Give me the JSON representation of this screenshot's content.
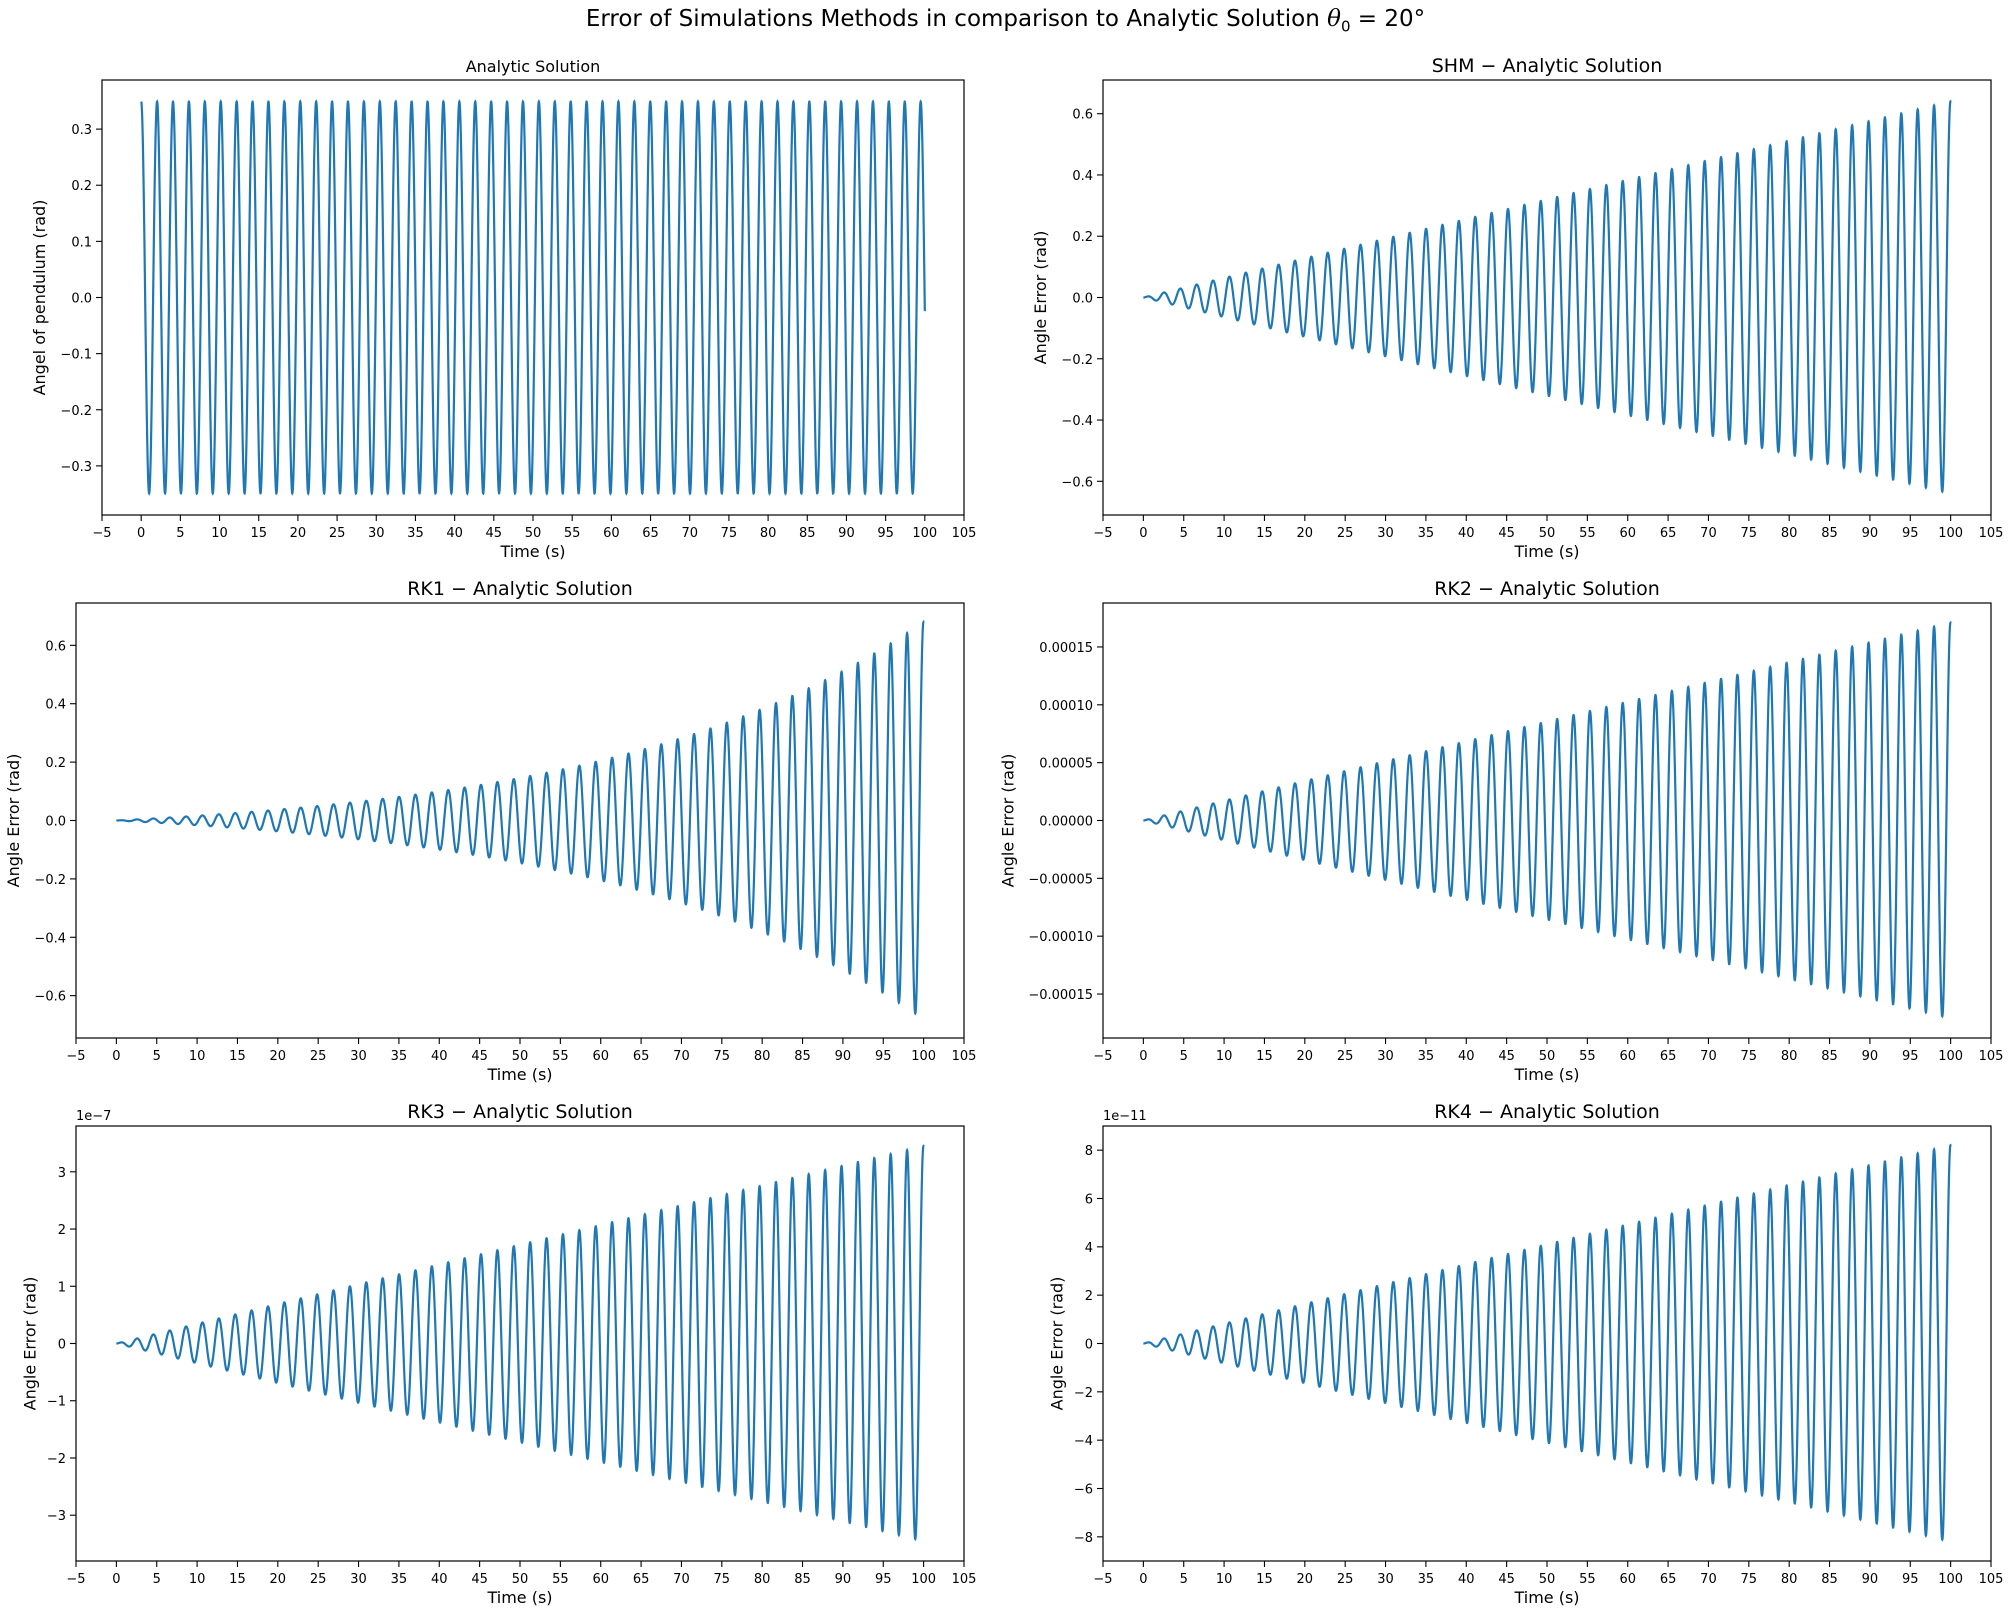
{
  "figure": {
    "title_prefix": "Error of Simulations Methods in comparison to Analytic Solution",
    "title_theta": "θ",
    "title_sub": "0",
    "title_suffix": " = 20°"
  },
  "chart_data": [
    {
      "type": "line",
      "title": "Analytic Solution",
      "xlabel": "Time (s)",
      "ylabel": "Angel of pendulum (rad)",
      "offset_text": "",
      "xlim": [
        -5,
        105
      ],
      "ylim": [
        -0.3875,
        0.3875
      ],
      "xticks": [
        -5,
        0,
        5,
        10,
        15,
        20,
        25,
        30,
        35,
        40,
        45,
        50,
        55,
        60,
        65,
        70,
        75,
        80,
        85,
        90,
        95,
        100,
        105
      ],
      "yticks": [
        -0.3,
        -0.2,
        -0.1,
        0.0,
        0.1,
        0.2,
        0.3
      ],
      "ytick_labels": [
        "−0.3",
        "−0.2",
        "−0.1",
        "0.0",
        "0.1",
        "0.2",
        "0.3"
      ],
      "series": [
        {
          "color": "#1f77b4",
          "signal": {
            "kind": "cosine",
            "amplitude": 0.349,
            "period_s": 2.03,
            "t_start": 0,
            "t_end": 100
          }
        }
      ]
    },
    {
      "type": "line",
      "title": "SHM − Analytic Solution",
      "xlabel": "Time (s)",
      "ylabel": "Angle Error (rad)",
      "offset_text": "",
      "xlim": [
        -5,
        105
      ],
      "ylim": [
        -0.71,
        0.71
      ],
      "xticks": [
        -5,
        0,
        5,
        10,
        15,
        20,
        25,
        30,
        35,
        40,
        45,
        50,
        55,
        60,
        65,
        70,
        75,
        80,
        85,
        90,
        95,
        100,
        105
      ],
      "yticks": [
        -0.6,
        -0.4,
        -0.2,
        0.0,
        0.2,
        0.4,
        0.6
      ],
      "ytick_labels": [
        "−0.6",
        "−0.4",
        "−0.2",
        "0.0",
        "0.2",
        "0.4",
        "0.6"
      ],
      "series": [
        {
          "color": "#1f77b4",
          "signal": {
            "kind": "growing-error",
            "peak_amplitude": 0.64,
            "period_s": 2.03,
            "t_start": 0,
            "t_end": 100
          }
        }
      ]
    },
    {
      "type": "line",
      "title": "RK1 − Analytic Solution",
      "xlabel": "Time (s)",
      "ylabel": "Angle Error (rad)",
      "offset_text": "",
      "xlim": [
        -5,
        105
      ],
      "ylim": [
        -0.745,
        0.745
      ],
      "xticks": [
        -5,
        0,
        5,
        10,
        15,
        20,
        25,
        30,
        35,
        40,
        45,
        50,
        55,
        60,
        65,
        70,
        75,
        80,
        85,
        90,
        95,
        100,
        105
      ],
      "yticks": [
        -0.6,
        -0.4,
        -0.2,
        0.0,
        0.2,
        0.4,
        0.6
      ],
      "ytick_labels": [
        "−0.6",
        "−0.4",
        "−0.2",
        "0.0",
        "0.2",
        "0.4",
        "0.6"
      ],
      "series": [
        {
          "color": "#1f77b4",
          "signal": {
            "kind": "exponential-error",
            "peak_amplitude": 0.68,
            "period_s": 2.03,
            "t_start": 0,
            "t_end": 100
          }
        }
      ]
    },
    {
      "type": "line",
      "title": "RK2 − Analytic Solution",
      "xlabel": "Time (s)",
      "ylabel": "Angle Error (rad)",
      "offset_text": "",
      "xlim": [
        -5,
        105
      ],
      "ylim": [
        -0.000188,
        0.000188
      ],
      "xticks": [
        -5,
        0,
        5,
        10,
        15,
        20,
        25,
        30,
        35,
        40,
        45,
        50,
        55,
        60,
        65,
        70,
        75,
        80,
        85,
        90,
        95,
        100,
        105
      ],
      "yticks": [
        -0.00015,
        -0.0001,
        -5e-05,
        0.0,
        5e-05,
        0.0001,
        0.00015
      ],
      "ytick_labels": [
        "−0.00015",
        "−0.00010",
        "−0.00005",
        "0.00000",
        "0.00005",
        "0.00010",
        "0.00015"
      ],
      "series": [
        {
          "color": "#1f77b4",
          "signal": {
            "kind": "growing-error",
            "peak_amplitude": 0.000171,
            "period_s": 2.03,
            "t_start": 0,
            "t_end": 100
          }
        }
      ]
    },
    {
      "type": "line",
      "title": "RK3 − Analytic Solution",
      "xlabel": "Time (s)",
      "ylabel": "Angle Error (rad)",
      "offset_text": "1e−7",
      "xlim": [
        -5,
        105
      ],
      "ylim": [
        -3.8,
        3.8
      ],
      "xticks": [
        -5,
        0,
        5,
        10,
        15,
        20,
        25,
        30,
        35,
        40,
        45,
        50,
        55,
        60,
        65,
        70,
        75,
        80,
        85,
        90,
        95,
        100,
        105
      ],
      "yticks": [
        -3,
        -2,
        -1,
        0,
        1,
        2,
        3
      ],
      "ytick_labels": [
        "−3",
        "−2",
        "−1",
        "0",
        "1",
        "2",
        "3"
      ],
      "series": [
        {
          "color": "#1f77b4",
          "signal": {
            "kind": "growing-error",
            "peak_amplitude": 3.45,
            "period_s": 2.03,
            "t_start": 0,
            "t_end": 100
          }
        }
      ]
    },
    {
      "type": "line",
      "title": "RK4 − Analytic Solution",
      "xlabel": "Time (s)",
      "ylabel": "Angle Error (rad)",
      "offset_text": "1e−11",
      "xlim": [
        -5,
        105
      ],
      "ylim": [
        -9.0,
        9.0
      ],
      "xticks": [
        -5,
        0,
        5,
        10,
        15,
        20,
        25,
        30,
        35,
        40,
        45,
        50,
        55,
        60,
        65,
        70,
        75,
        80,
        85,
        90,
        95,
        100,
        105
      ],
      "yticks": [
        -8,
        -6,
        -4,
        -2,
        0,
        2,
        4,
        6,
        8
      ],
      "ytick_labels": [
        "−8",
        "−6",
        "−4",
        "−2",
        "0",
        "2",
        "4",
        "6",
        "8"
      ],
      "series": [
        {
          "color": "#1f77b4",
          "signal": {
            "kind": "growing-error",
            "peak_amplitude": 8.2,
            "period_s": 2.03,
            "t_start": 0,
            "t_end": 100
          }
        }
      ]
    }
  ]
}
